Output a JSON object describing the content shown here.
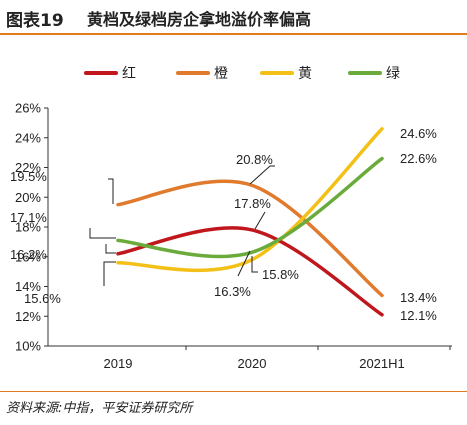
{
  "header": {
    "figure_number": "图表19",
    "title": "黄档及绿档房企拿地溢价率偏高"
  },
  "source": "资料来源:中指，平安证券研究所",
  "chart_data": {
    "type": "line",
    "title": "黄档及绿档房企拿地溢价率偏高",
    "categories": [
      "2019",
      "2020",
      "2021H1"
    ],
    "y_ticks": [
      "10%",
      "12%",
      "14%",
      "16%",
      "18%",
      "20%",
      "22%",
      "24%",
      "26%"
    ],
    "ylim": [
      10,
      26
    ],
    "ylabel": "",
    "xlabel": "",
    "legend_position": "top",
    "grid": false,
    "series": [
      {
        "name": "红",
        "color": "#c0171d",
        "values": [
          16.2,
          17.8,
          12.1
        ],
        "labels": [
          "16.2%",
          "17.8%",
          "12.1%"
        ]
      },
      {
        "name": "橙",
        "color": "#e07b2e",
        "values": [
          19.5,
          20.8,
          13.4
        ],
        "labels": [
          "19.5%",
          "20.8%",
          "13.4%"
        ]
      },
      {
        "name": "黄",
        "color": "#f3c017",
        "values": [
          15.6,
          15.8,
          24.6
        ],
        "labels": [
          "15.6%",
          "15.8%",
          "24.6%"
        ]
      },
      {
        "name": "绿",
        "color": "#6aab3c",
        "values": [
          17.1,
          16.3,
          22.6
        ],
        "labels": [
          "17.1%",
          "16.3%",
          "22.6%"
        ]
      }
    ]
  }
}
